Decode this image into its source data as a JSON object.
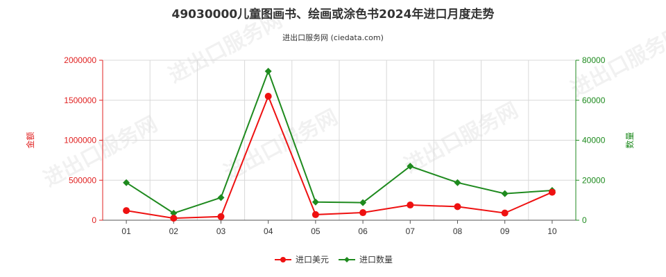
{
  "chart_data": {
    "type": "line",
    "title": "49030000儿童图画书、绘画或涂色书2024年进口月度走势",
    "subtitle": "进出口服务网 (ciedata.com)",
    "categories": [
      "01",
      "02",
      "03",
      "04",
      "05",
      "06",
      "07",
      "08",
      "09",
      "10"
    ],
    "y_left": {
      "label": "金额",
      "range": [
        0,
        2000000
      ],
      "ticks": [
        "0",
        "500000",
        "1000000",
        "1500000",
        "2000000"
      ],
      "color": "#e02020"
    },
    "y_right": {
      "label": "数量",
      "range": [
        0,
        80000
      ],
      "ticks": [
        "0",
        "20000",
        "40000",
        "60000",
        "80000"
      ],
      "color": "#1e8a1e"
    },
    "series": [
      {
        "name": "进口美元",
        "axis": "left",
        "color": "#ee1111",
        "marker": "circle",
        "values": [
          120000,
          25000,
          45000,
          1550000,
          70000,
          95000,
          190000,
          170000,
          90000,
          350000
        ]
      },
      {
        "name": "进口数量",
        "axis": "right",
        "color": "#1e8a1e",
        "marker": "diamond",
        "values": [
          18800,
          3500,
          11300,
          74500,
          9100,
          8800,
          27000,
          18800,
          13300,
          14900
        ]
      }
    ],
    "grid": true,
    "legend": "bottom-center",
    "watermark": "进出口服务网"
  }
}
